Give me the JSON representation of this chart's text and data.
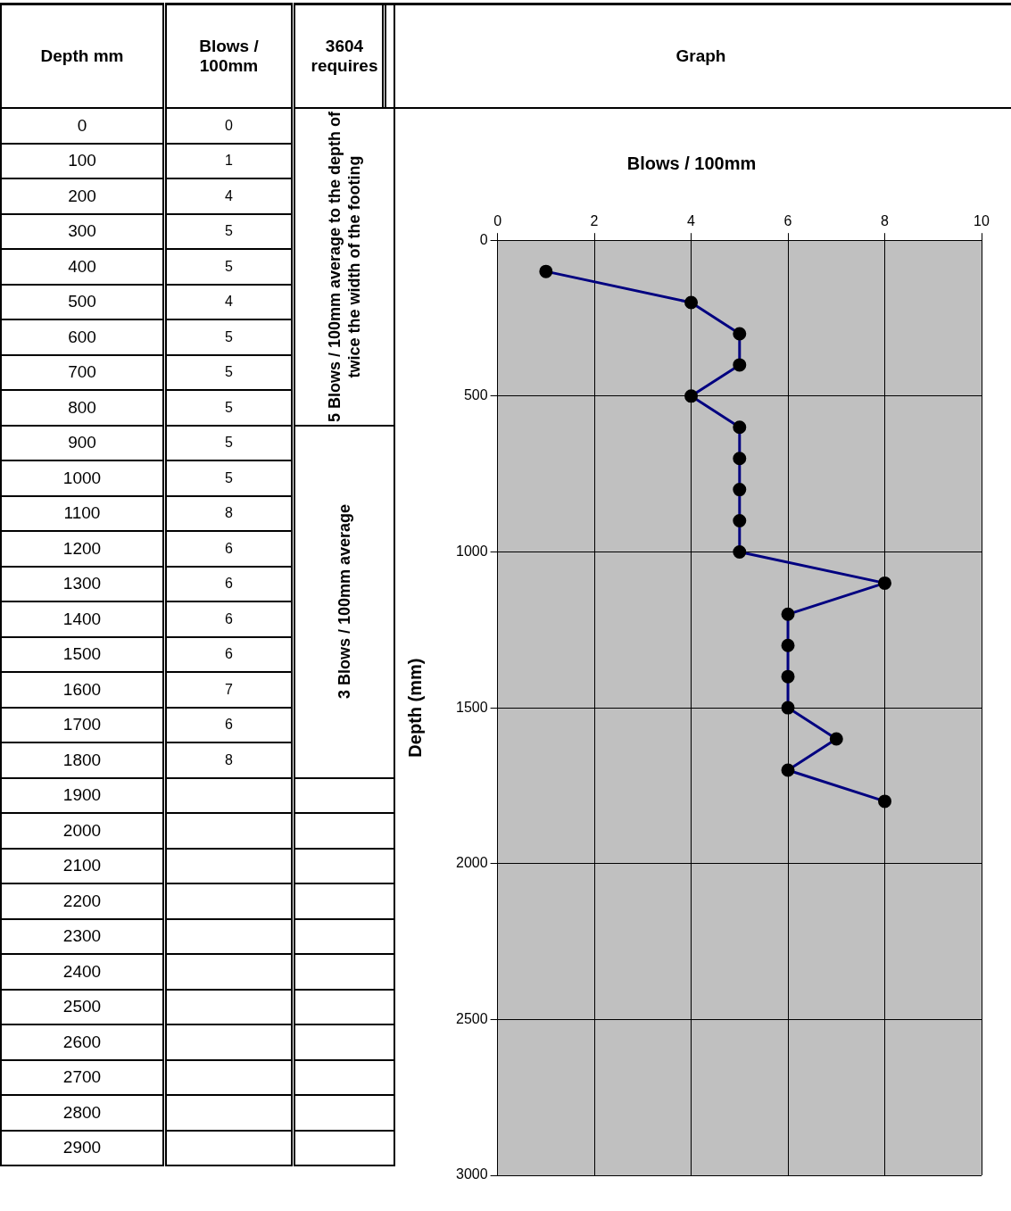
{
  "chart_data": [
    {
      "type": "heatmap",
      "ylabel": "Depth mm",
      "annotations": [
        "3604 requires",
        "Graph",
        "5 Blows / 100mm  average to the depth of twice the width of the footing",
        "3 Blows / 100mm  average"
      ],
      "categories": [
        "Blows / 100mm"
      ],
      "y_categories": [
        "0",
        "100",
        "200",
        "300",
        "400",
        "500",
        "600",
        "700",
        "800",
        "900",
        "1000",
        "1100",
        "1200",
        "1300",
        "1400",
        "1500",
        "1600",
        "1700",
        "1800",
        "1900",
        "2000",
        "2100",
        "2200",
        "2300",
        "2400",
        "2500",
        "2600",
        "2700",
        "2800",
        "2900"
      ],
      "cells": [
        [
          0
        ],
        [
          1
        ],
        [
          4
        ],
        [
          5
        ],
        [
          5
        ],
        [
          4
        ],
        [
          5
        ],
        [
          5
        ],
        [
          5
        ],
        [
          5
        ],
        [
          5
        ],
        [
          8
        ],
        [
          6
        ],
        [
          6
        ],
        [
          6
        ],
        [
          6
        ],
        [
          7
        ],
        [
          6
        ],
        [
          8
        ],
        [
          null
        ],
        [
          null
        ],
        [
          null
        ],
        [
          null
        ],
        [
          null
        ],
        [
          null
        ],
        [
          null
        ],
        [
          null
        ],
        [
          null
        ],
        [
          null
        ],
        [
          null
        ]
      ],
      "data_labels": true
    },
    {
      "type": "line",
      "title": "Blows / 100mm",
      "ylabel": "Depth (mm)",
      "color": "#000080",
      "marker": "circle",
      "grid": true,
      "x": [
        1,
        4,
        5,
        5,
        4,
        5,
        5,
        5,
        5,
        5,
        8,
        6,
        6,
        6,
        6,
        7,
        6,
        8
      ],
      "values": [
        100,
        200,
        300,
        400,
        500,
        600,
        700,
        800,
        900,
        1000,
        1100,
        1200,
        1300,
        1400,
        1500,
        1600,
        1700,
        1800
      ],
      "xlim": [
        0,
        10
      ],
      "xticks": [
        0,
        2,
        4,
        6,
        8,
        10
      ],
      "ylim": [
        3000,
        0
      ],
      "yticks": [
        0,
        500,
        1000,
        1500,
        2000,
        2500,
        3000
      ]
    }
  ]
}
